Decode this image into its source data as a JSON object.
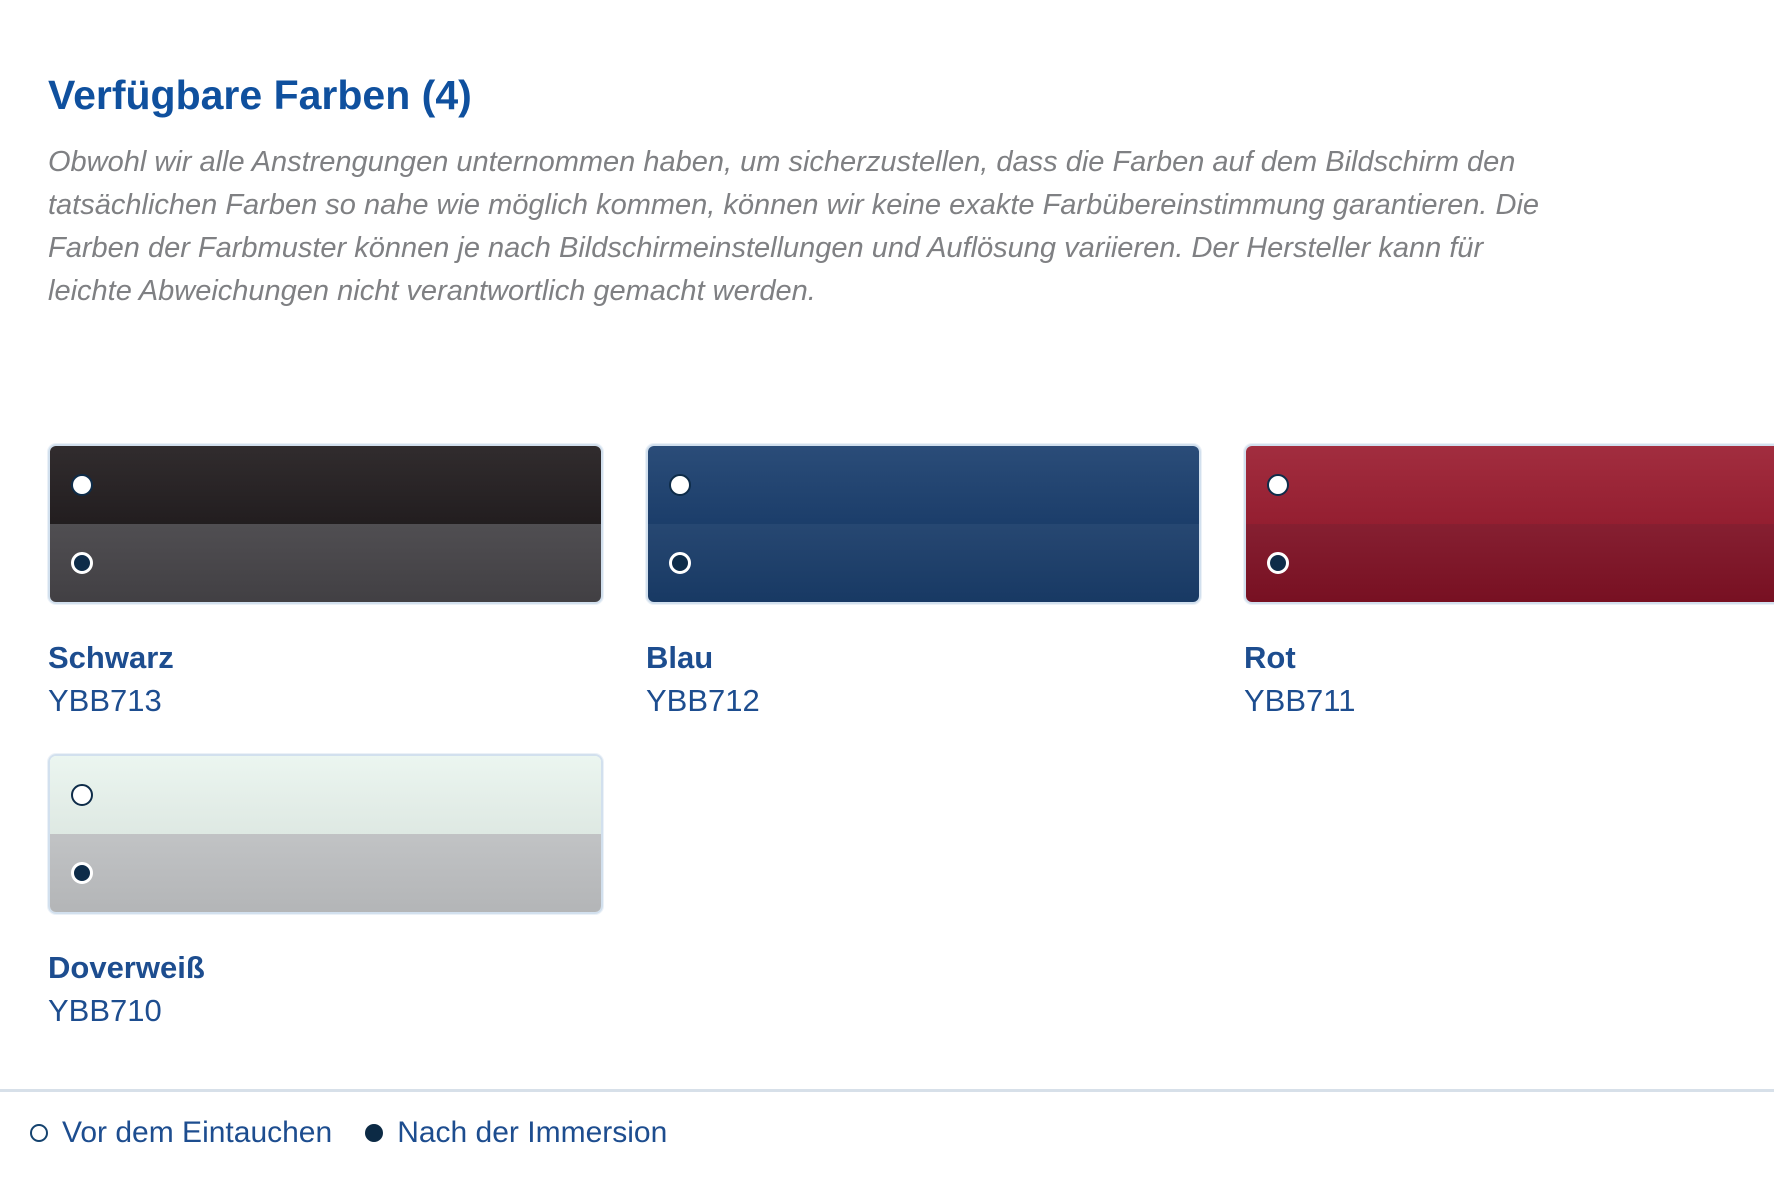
{
  "header": {
    "title": "Verfügbare Farben (4)"
  },
  "disclaimer": "Obwohl wir alle Anstrengungen unternommen haben, um sicherzustellen, dass die Farben auf dem Bildschirm den tatsächlichen Farben so nahe wie möglich kommen, können wir keine exakte Farbübereinstimmung garantieren. Die Farben der Farbmuster können je nach Bildschirmeinstellungen und Auflösung variieren. Der Hersteller kann für leichte Abweichungen nicht verantwortlich gemacht werden.",
  "swatches": [
    {
      "name": "Schwarz",
      "code": "YBB713",
      "top_color": "#241f21",
      "bottom_color": "#454347",
      "top_state": "vor-dem-eintauchen",
      "bottom_state": "nach-der-immersion"
    },
    {
      "name": "Blau",
      "code": "YBB712",
      "top_color": "#1d4170",
      "bottom_color": "#193c69",
      "top_state": "vor-dem-eintauchen",
      "bottom_state": "nach-der-immersion"
    },
    {
      "name": "Rot",
      "code": "YBB711",
      "top_color": "#9c2033",
      "bottom_color": "#7e1124",
      "top_state": "vor-dem-eintauchen",
      "bottom_state": "nach-der-immersion"
    },
    {
      "name": "Doverweiß",
      "code": "YBB710",
      "top_color": "#eaf5ef",
      "bottom_color": "#bdbfc1",
      "top_state": "vor-dem-eintauchen",
      "bottom_state": "nach-der-immersion"
    }
  ],
  "legend": {
    "before": "Vor dem Eintauchen",
    "after": "Nach der Immersion",
    "before_icon": "circle-outline-icon",
    "after_icon": "circle-filled-icon"
  },
  "theme": {
    "heading_blue": "#0f509e",
    "label_blue": "#1d4d8f",
    "paragraph_gray": "#7f8083",
    "divider_gray": "#d7e0e9",
    "swatch_border": "#d2e0ee",
    "radio_navy": "#0e2c49"
  }
}
